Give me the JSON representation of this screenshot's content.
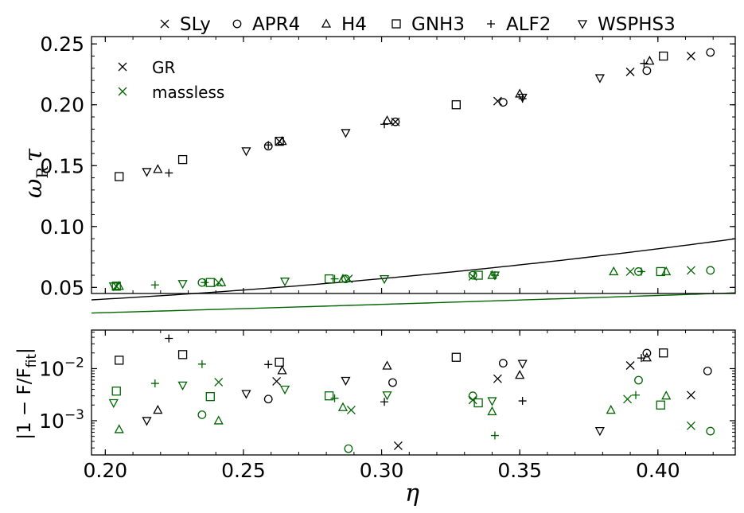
{
  "chart_data": [
    {
      "type": "scatter",
      "panel": "top",
      "ylabel": "ω_R τ",
      "ylabel_parts": {
        "omega": "ω",
        "sub": "R",
        "tau": "τ"
      },
      "xlim": [
        0.195,
        0.428
      ],
      "ylim": [
        0.045,
        0.256
      ],
      "xticks": [
        0.2,
        0.25,
        0.3,
        0.35,
        0.4
      ],
      "xtick_labels": [
        "0.20",
        "0.25",
        "0.30",
        "0.35",
        "0.40"
      ],
      "yticks": [
        0.05,
        0.1,
        0.15,
        0.2,
        0.25
      ],
      "ytick_labels": [
        "0.05",
        "0.10",
        "0.15",
        "0.20",
        "0.25"
      ],
      "fits": [
        {
          "name": "GR fit",
          "color": "#000000",
          "coef": [
            0.0145,
            0.1295,
            0.7
          ]
        },
        {
          "name": "massless fit",
          "color": "#006400",
          "coef": [
            0.0163,
            0.0649,
            0.05
          ]
        }
      ],
      "inner_legend": [
        {
          "label": "GR",
          "marker": "x",
          "color": "#000000"
        },
        {
          "label": "massless",
          "marker": "x",
          "color": "#006400"
        }
      ],
      "series": [
        {
          "name": "GR SLy",
          "eos": "SLy",
          "marker": "x",
          "color": "#000000",
          "x": [
            0.263,
            0.305,
            0.342,
            0.39,
            0.412
          ],
          "y": [
            0.17,
            0.186,
            0.203,
            0.227,
            0.24
          ]
        },
        {
          "name": "GR APR4",
          "eos": "APR4",
          "marker": "o",
          "color": "#000000",
          "x": [
            0.259,
            0.305,
            0.344,
            0.396,
            0.419
          ],
          "y": [
            0.166,
            0.186,
            0.202,
            0.228,
            0.243
          ]
        },
        {
          "name": "GR H4",
          "eos": "H4",
          "marker": "^",
          "color": "#000000",
          "x": [
            0.219,
            0.264,
            0.302,
            0.35,
            0.397
          ],
          "y": [
            0.147,
            0.17,
            0.187,
            0.209,
            0.236
          ]
        },
        {
          "name": "GR GNH3",
          "eos": "GNH3",
          "marker": "s",
          "color": "#000000",
          "x": [
            0.205,
            0.228,
            0.263,
            0.327,
            0.402
          ],
          "y": [
            0.141,
            0.155,
            0.17,
            0.2,
            0.24
          ]
        },
        {
          "name": "GR ALF2",
          "eos": "ALF2",
          "marker": "+",
          "color": "#000000",
          "x": [
            0.223,
            0.259,
            0.301,
            0.351,
            0.395
          ],
          "y": [
            0.144,
            0.167,
            0.184,
            0.205,
            0.234
          ]
        },
        {
          "name": "GR WSPHS3",
          "eos": "WSPHS3",
          "marker": "v",
          "color": "#000000",
          "x": [
            0.215,
            0.251,
            0.287,
            0.351,
            0.379
          ],
          "y": [
            0.145,
            0.162,
            0.177,
            0.206,
            0.222
          ]
        },
        {
          "name": "massless SLy",
          "eos": "SLy",
          "marker": "x",
          "color": "#006400",
          "x": [
            0.204,
            0.241,
            0.288,
            0.333,
            0.39,
            0.412
          ],
          "y": [
            0.051,
            0.054,
            0.057,
            0.059,
            0.063,
            0.064
          ]
        },
        {
          "name": "massless APR4",
          "eos": "APR4",
          "marker": "o",
          "color": "#006400",
          "x": [
            0.235,
            0.287,
            0.333,
            0.393,
            0.419
          ],
          "y": [
            0.054,
            0.057,
            0.06,
            0.063,
            0.064
          ]
        },
        {
          "name": "massless H4",
          "eos": "H4",
          "marker": "^",
          "color": "#006400",
          "x": [
            0.205,
            0.242,
            0.286,
            0.34,
            0.384,
            0.403
          ],
          "y": [
            0.051,
            0.054,
            0.057,
            0.06,
            0.063,
            0.063
          ]
        },
        {
          "name": "massless GNH3",
          "eos": "GNH3",
          "marker": "s",
          "color": "#006400",
          "x": [
            0.204,
            0.238,
            0.281,
            0.335,
            0.401
          ],
          "y": [
            0.051,
            0.054,
            0.057,
            0.06,
            0.063
          ]
        },
        {
          "name": "massless ALF2",
          "eos": "ALF2",
          "marker": "+",
          "color": "#006400",
          "x": [
            0.218,
            0.236,
            0.283,
            0.341,
            0.394
          ],
          "y": [
            0.052,
            0.054,
            0.057,
            0.06,
            0.063
          ]
        },
        {
          "name": "massless WSPHS3",
          "eos": "WSPHS3",
          "marker": "v",
          "color": "#006400",
          "x": [
            0.203,
            0.228,
            0.265,
            0.301,
            0.341
          ],
          "y": [
            0.051,
            0.053,
            0.055,
            0.057,
            0.06
          ]
        }
      ]
    },
    {
      "type": "scatter",
      "panel": "bottom",
      "xlabel": "η",
      "ylabel": "|1 − F/F_fit|",
      "ylabel_parts": {
        "main": "|1 − F/F",
        "sub": "fit",
        "end": "|"
      },
      "yscale": "log",
      "xlim": [
        0.195,
        0.428
      ],
      "ylim": [
        0.00022,
        0.055
      ],
      "xticks": [
        0.2,
        0.25,
        0.3,
        0.35,
        0.4
      ],
      "xtick_labels": [
        "0.20",
        "0.25",
        "0.30",
        "0.35",
        "0.40"
      ],
      "yticks": [
        0.001,
        0.01
      ],
      "ytick_labels": [
        {
          "base": "10",
          "exp": "−3"
        },
        {
          "base": "10",
          "exp": "−2"
        }
      ],
      "series": [
        {
          "name": "GR SLy",
          "eos": "SLy",
          "marker": "x",
          "color": "#000000",
          "x": [
            0.262,
            0.306,
            0.342,
            0.39,
            0.412
          ],
          "y": [
            0.0057,
            0.00033,
            0.0064,
            0.0115,
            0.0031
          ]
        },
        {
          "name": "GR APR4",
          "eos": "APR4",
          "marker": "o",
          "color": "#000000",
          "x": [
            0.259,
            0.304,
            0.344,
            0.396,
            0.418
          ],
          "y": [
            0.0026,
            0.0054,
            0.0127,
            0.0198,
            0.009
          ]
        },
        {
          "name": "GR H4",
          "eos": "H4",
          "marker": "^",
          "color": "#000000",
          "x": [
            0.219,
            0.264,
            0.302,
            0.35,
            0.396
          ],
          "y": [
            0.0016,
            0.0092,
            0.0113,
            0.0075,
            0.0162
          ]
        },
        {
          "name": "GR GNH3",
          "eos": "GNH3",
          "marker": "s",
          "color": "#000000",
          "x": [
            0.205,
            0.228,
            0.263,
            0.327,
            0.402
          ],
          "y": [
            0.0145,
            0.0186,
            0.0133,
            0.0165,
            0.02
          ]
        },
        {
          "name": "GR ALF2",
          "eos": "ALF2",
          "marker": "+",
          "color": "#000000",
          "x": [
            0.223,
            0.259,
            0.301,
            0.351,
            0.394
          ],
          "y": [
            0.038,
            0.012,
            0.0023,
            0.0024,
            0.016
          ]
        },
        {
          "name": "GR WSPHS3",
          "eos": "WSPHS3",
          "marker": "v",
          "color": "#000000",
          "x": [
            0.215,
            0.251,
            0.287,
            0.351,
            0.379
          ],
          "y": [
            0.001,
            0.0033,
            0.0059,
            0.0125,
            0.00064
          ]
        },
        {
          "name": "massless SLy",
          "eos": "SLy",
          "marker": "x",
          "color": "#006400",
          "x": [
            0.241,
            0.289,
            0.333,
            0.389,
            0.412
          ],
          "y": [
            0.0055,
            0.0016,
            0.0025,
            0.0026,
            0.0008
          ]
        },
        {
          "name": "massless APR4",
          "eos": "APR4",
          "marker": "o",
          "color": "#006400",
          "x": [
            0.235,
            0.288,
            0.333,
            0.393,
            0.419
          ],
          "y": [
            0.0013,
            0.00029,
            0.003,
            0.006,
            0.00063
          ]
        },
        {
          "name": "massless H4",
          "eos": "H4",
          "marker": "^",
          "color": "#006400",
          "x": [
            0.205,
            0.241,
            0.286,
            0.34,
            0.383,
            0.403
          ],
          "y": [
            0.00068,
            0.001,
            0.0018,
            0.0015,
            0.0016,
            0.003
          ]
        },
        {
          "name": "massless GNH3",
          "eos": "GNH3",
          "marker": "s",
          "color": "#006400",
          "x": [
            0.204,
            0.238,
            0.281,
            0.335,
            0.401
          ],
          "y": [
            0.0037,
            0.0029,
            0.003,
            0.0022,
            0.002
          ]
        },
        {
          "name": "massless ALF2",
          "eos": "ALF2",
          "marker": "+",
          "color": "#006400",
          "x": [
            0.218,
            0.235,
            0.283,
            0.341,
            0.392
          ],
          "y": [
            0.0052,
            0.0122,
            0.0027,
            0.00052,
            0.0031
          ]
        },
        {
          "name": "massless WSPHS3",
          "eos": "WSPHS3",
          "marker": "v",
          "color": "#006400",
          "x": [
            0.203,
            0.228,
            0.265,
            0.302,
            0.34
          ],
          "y": [
            0.0022,
            0.0048,
            0.004,
            0.0031,
            0.0024
          ]
        }
      ]
    }
  ],
  "top_legend": [
    {
      "label": "SLy",
      "marker": "x"
    },
    {
      "label": "APR4",
      "marker": "o"
    },
    {
      "label": "H4",
      "marker": "^"
    },
    {
      "label": "GNH3",
      "marker": "s"
    },
    {
      "label": "ALF2",
      "marker": "+"
    },
    {
      "label": "WSPHS3",
      "marker": "v"
    }
  ]
}
